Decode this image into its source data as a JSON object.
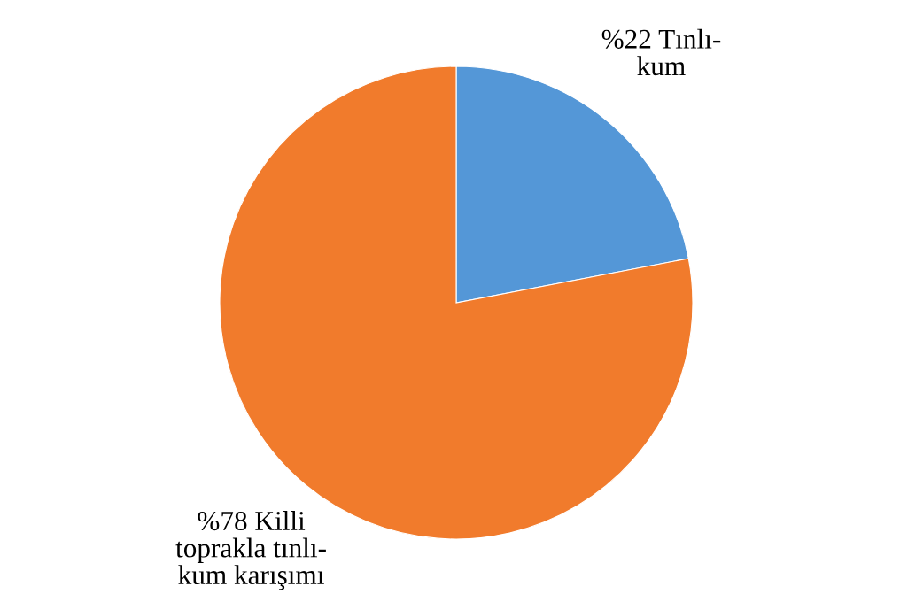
{
  "chart_data": {
    "type": "pie",
    "categories": [
      "Tınlı-\nkum",
      "Killi\ntoprakla tınlı-\nkum karışımı"
    ],
    "values": [
      22,
      78
    ],
    "value_labels": [
      "%22",
      "%78"
    ],
    "colors": [
      "#5497d7",
      "#f17b2c"
    ],
    "legend": false
  }
}
